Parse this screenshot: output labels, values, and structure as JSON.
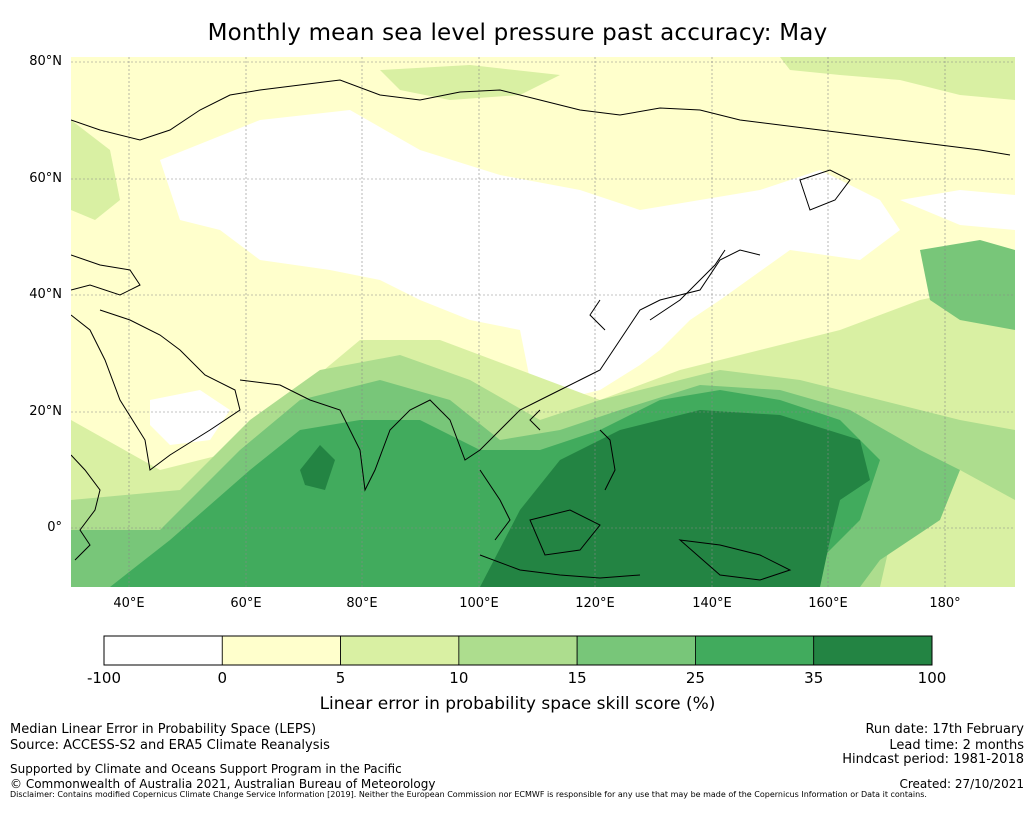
{
  "title": "Monthly mean sea level pressure past accuracy: May",
  "map": {
    "lat_labels": [
      "80°N",
      "60°N",
      "40°N",
      "20°N",
      "0°"
    ],
    "lon_labels": [
      "40°E",
      "60°E",
      "80°E",
      "100°E",
      "120°E",
      "140°E",
      "160°E",
      "180°"
    ],
    "colors": {
      "neg100_0": "#ffffff",
      "0_5": "#ffffcc",
      "5_10": "#d9f0a3",
      "10_15": "#addd8e",
      "15_25": "#78c679",
      "25_35": "#41ab5d",
      "35_100": "#238443",
      "coast": "#000000",
      "grid": "#888888"
    }
  },
  "colorbar": {
    "ticks": [
      "-100",
      "0",
      "5",
      "10",
      "15",
      "25",
      "35",
      "100"
    ],
    "colors": [
      "#ffffff",
      "#ffffcc",
      "#d9f0a3",
      "#addd8e",
      "#78c679",
      "#41ab5d",
      "#238443"
    ],
    "label": "Linear error in probability space skill score (%)"
  },
  "footer": {
    "left1": "Median Linear Error in Probability Space (LEPS)",
    "left2": "Source: ACCESS-S2 and ERA5 Climate Reanalysis",
    "left3": "Supported by Climate and Oceans Support Program in the Pacific",
    "left4": "© Commonwealth of Australia 2021, Australian Bureau of Meteorology",
    "right1": "Run date: 17th February",
    "right2": "Lead time: 2 months",
    "right3": "Hindcast period: 1981-2018",
    "right4": "Created: 27/10/2021",
    "disclaimer": "Disclaimer: Contains modified Copernicus Climate Change Service Information [2019]. Neither the European Commission nor ECMWF is responsible for any use that may be made of the Copernicus Information or Data it contains."
  }
}
